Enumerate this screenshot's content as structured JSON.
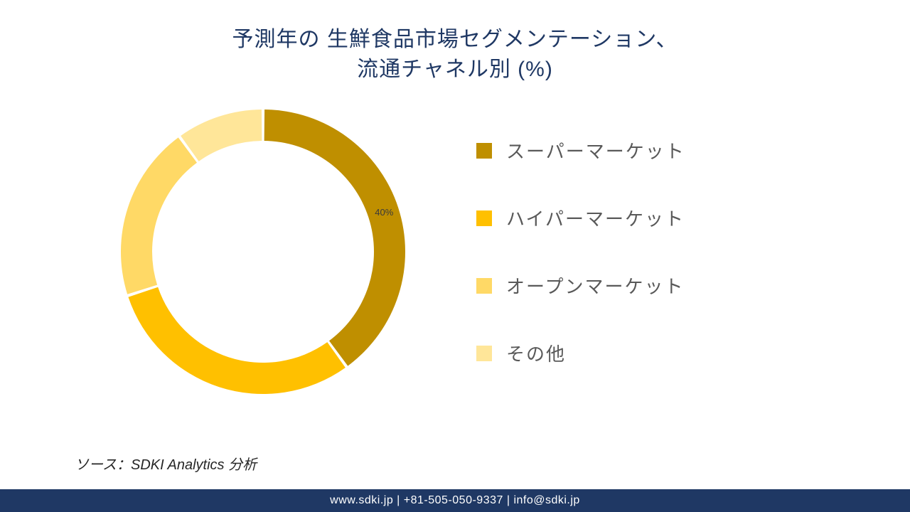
{
  "title_line1": "予測年の 生鮮食品市場セグメンテーション、",
  "title_line2": "流通チャネル別 (%)",
  "title_color": "#1f3864",
  "title_fontsize": 30,
  "chart": {
    "type": "donut",
    "inner_radius_ratio": 0.78,
    "outer_radius": 200,
    "background_color": "#ffffff",
    "segments": [
      {
        "label": "スーパーマーケット",
        "value": 40,
        "color": "#bf8f00",
        "show_label": true,
        "label_text": "40%"
      },
      {
        "label": "ハイパーマーケット",
        "value": 30,
        "color": "#ffc000",
        "show_label": false
      },
      {
        "label": "オープンマーケット",
        "value": 20,
        "color": "#ffd966",
        "show_label": false
      },
      {
        "label": "その他",
        "value": 10,
        "color": "#ffe699",
        "show_label": false
      }
    ],
    "segment_gap_deg": 1.2,
    "start_angle_deg": -90,
    "label_fontsize": 13,
    "label_color": "#3a3a3a"
  },
  "legend": {
    "fontsize": 26,
    "text_color": "#595959",
    "marker_size": 22,
    "gap": 58
  },
  "source_text": "ソース：SDKI Analytics 分析",
  "source_fontsize": 20,
  "footer_text": "www.sdki.jp | +81-505-050-9337 | info@sdki.jp",
  "footer_bg": "#1f3864",
  "footer_color": "#ffffff"
}
